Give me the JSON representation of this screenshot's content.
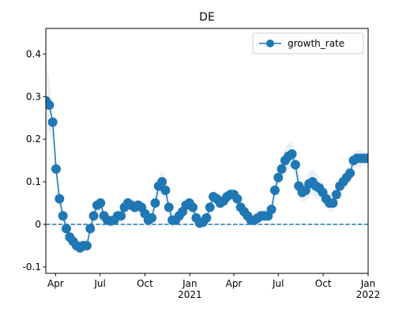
{
  "chart_data": {
    "type": "line",
    "title": "DE",
    "x": [
      "2020-03-12",
      "2020-03-19",
      "2020-03-26",
      "2020-04-02",
      "2020-04-09",
      "2020-04-16",
      "2020-04-23",
      "2020-04-30",
      "2020-05-07",
      "2020-05-14",
      "2020-05-21",
      "2020-05-28",
      "2020-06-04",
      "2020-06-11",
      "2020-06-18",
      "2020-06-25",
      "2020-07-02",
      "2020-07-09",
      "2020-07-16",
      "2020-07-23",
      "2020-07-30",
      "2020-08-06",
      "2020-08-13",
      "2020-08-20",
      "2020-08-27",
      "2020-09-03",
      "2020-09-10",
      "2020-09-17",
      "2020-09-24",
      "2020-10-01",
      "2020-10-08",
      "2020-10-15",
      "2020-10-22",
      "2020-10-29",
      "2020-11-05",
      "2020-11-12",
      "2020-11-19",
      "2020-11-26",
      "2020-12-03",
      "2020-12-10",
      "2020-12-17",
      "2020-12-24",
      "2020-12-31",
      "2021-01-07",
      "2021-01-14",
      "2021-01-21",
      "2021-01-28",
      "2021-02-04",
      "2021-02-11",
      "2021-02-18",
      "2021-02-25",
      "2021-03-04",
      "2021-03-11",
      "2021-03-18",
      "2021-03-25",
      "2021-04-01",
      "2021-04-08",
      "2021-04-15",
      "2021-04-22",
      "2021-04-29",
      "2021-05-06",
      "2021-05-13",
      "2021-05-20",
      "2021-05-27",
      "2021-06-03",
      "2021-06-10",
      "2021-06-17",
      "2021-06-24",
      "2021-07-01",
      "2021-07-08",
      "2021-07-15",
      "2021-07-22",
      "2021-07-29",
      "2021-08-05",
      "2021-08-12",
      "2021-08-19",
      "2021-08-26",
      "2021-09-02",
      "2021-09-09",
      "2021-09-16",
      "2021-09-23",
      "2021-09-30",
      "2021-10-07",
      "2021-10-14",
      "2021-10-21",
      "2021-10-28",
      "2021-11-04",
      "2021-11-11",
      "2021-11-18",
      "2021-11-25",
      "2021-12-02",
      "2021-12-09",
      "2021-12-16",
      "2021-12-23",
      "2021-12-30"
    ],
    "series": [
      {
        "name": "growth_rate",
        "color": "#1f77b4",
        "values": [
          0.29,
          0.28,
          0.24,
          0.13,
          0.06,
          0.02,
          -0.01,
          -0.03,
          -0.04,
          -0.05,
          -0.055,
          -0.05,
          -0.05,
          -0.01,
          0.02,
          0.045,
          0.05,
          0.02,
          0.01,
          0.008,
          0.01,
          0.02,
          0.02,
          0.04,
          0.05,
          0.045,
          0.04,
          0.045,
          0.04,
          0.025,
          0.01,
          0.015,
          0.05,
          0.09,
          0.1,
          0.08,
          0.04,
          0.01,
          0.01,
          0.02,
          0.03,
          0.045,
          0.05,
          0.04,
          0.015,
          0.003,
          0.005,
          0.015,
          0.04,
          0.065,
          0.06,
          0.05,
          0.055,
          0.065,
          0.07,
          0.07,
          0.06,
          0.04,
          0.03,
          0.02,
          0.01,
          0.01,
          0.015,
          0.02,
          0.02,
          0.02,
          0.035,
          0.08,
          0.11,
          0.13,
          0.15,
          0.16,
          0.165,
          0.14,
          0.09,
          0.075,
          0.08,
          0.095,
          0.1,
          0.09,
          0.085,
          0.075,
          0.06,
          0.05,
          0.05,
          0.07,
          0.09,
          0.1,
          0.11,
          0.12,
          0.15,
          0.155,
          0.155,
          0.155,
          0.155
        ],
        "errors": [
          0.1,
          0.06,
          0.04,
          0.03,
          0.02,
          0.015,
          0.015,
          0.015,
          0.015,
          0.015,
          0.015,
          0.015,
          0.015,
          0.015,
          0.015,
          0.015,
          0.015,
          0.015,
          0.015,
          0.015,
          0.015,
          0.015,
          0.015,
          0.015,
          0.015,
          0.015,
          0.015,
          0.015,
          0.015,
          0.015,
          0.02,
          0.025,
          0.025,
          0.025,
          0.025,
          0.025,
          0.02,
          0.02,
          0.015,
          0.015,
          0.015,
          0.015,
          0.015,
          0.015,
          0.015,
          0.015,
          0.015,
          0.015,
          0.015,
          0.015,
          0.015,
          0.015,
          0.015,
          0.015,
          0.015,
          0.015,
          0.015,
          0.015,
          0.015,
          0.015,
          0.015,
          0.015,
          0.015,
          0.015,
          0.015,
          0.015,
          0.02,
          0.02,
          0.025,
          0.025,
          0.03,
          0.03,
          0.03,
          0.03,
          0.03,
          0.025,
          0.025,
          0.03,
          0.03,
          0.03,
          0.025,
          0.025,
          0.02,
          0.02,
          0.02,
          0.02,
          0.02,
          0.02,
          0.02,
          0.02,
          0.02,
          0.02,
          0.02,
          0.015,
          0.015
        ]
      }
    ],
    "xlim": [
      "2020-03-12",
      "2022-01-01"
    ],
    "xticks": [
      {
        "value": "2020-04-01",
        "label": "Apr"
      },
      {
        "value": "2020-07-01",
        "label": "Jul"
      },
      {
        "value": "2020-10-01",
        "label": "Oct"
      },
      {
        "value": "2021-01-01",
        "label": "Jan\n2021"
      },
      {
        "value": "2021-04-01",
        "label": "Apr"
      },
      {
        "value": "2021-07-01",
        "label": "Jul"
      },
      {
        "value": "2021-10-01",
        "label": "Oct"
      },
      {
        "value": "2022-01-01",
        "label": "Jan\n2022"
      }
    ],
    "ylim": [
      -0.115,
      0.46
    ],
    "yticks": [
      -0.1,
      0.0,
      0.1,
      0.2,
      0.3,
      0.4
    ],
    "hline": 0,
    "legend": "upper right"
  }
}
